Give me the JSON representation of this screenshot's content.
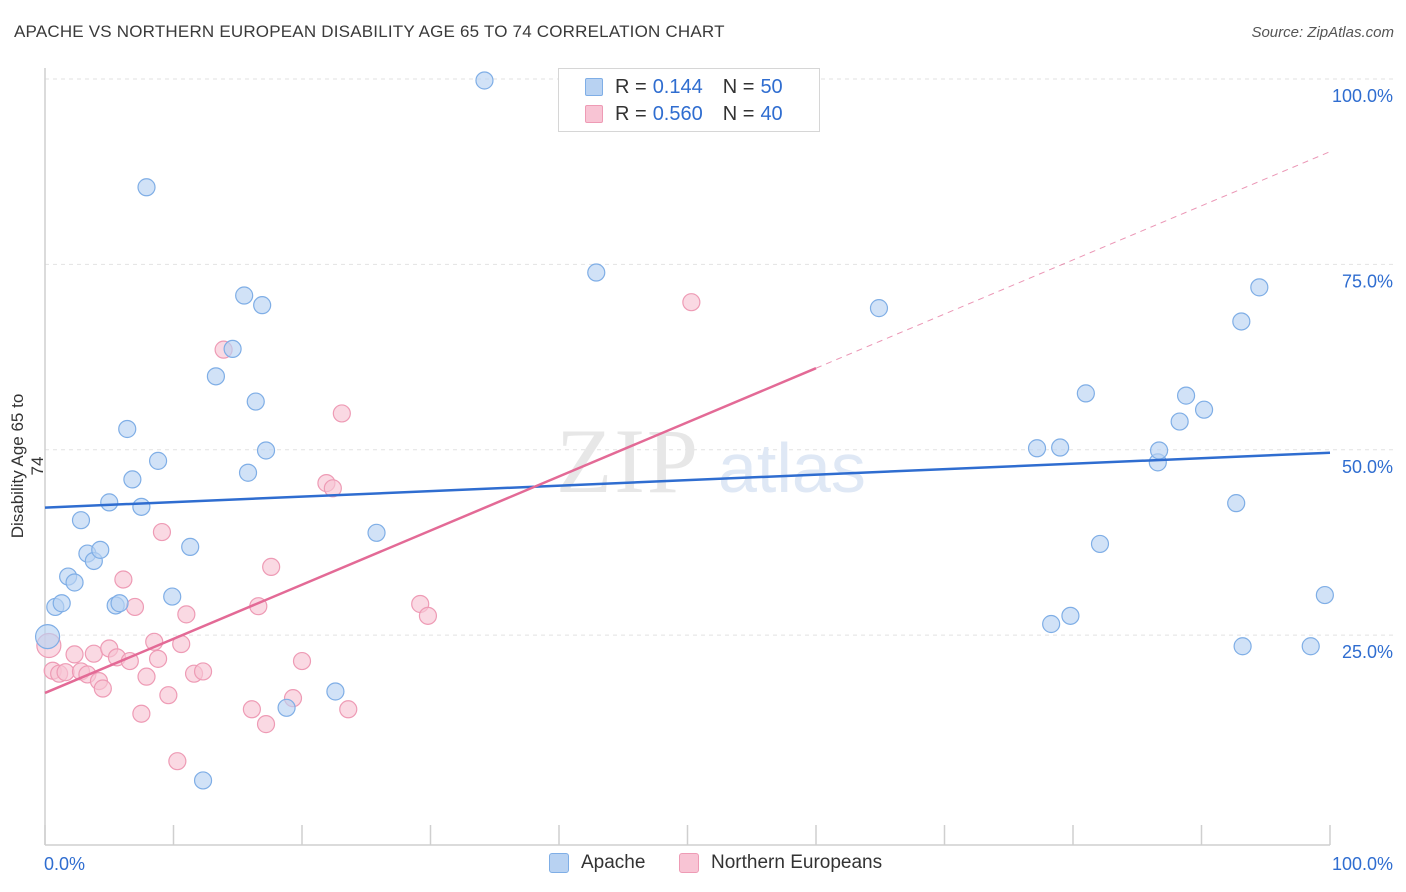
{
  "header": {
    "title": "APACHE VS NORTHERN EUROPEAN DISABILITY AGE 65 TO 74 CORRELATION CHART",
    "source": "Source: ZipAtlas.com"
  },
  "watermark": {
    "zip": "ZIP",
    "atlas": "atlas"
  },
  "legend_top": [
    {
      "r_label": "R =",
      "r_value": "0.144",
      "n_label": "N =",
      "n_value": "50"
    },
    {
      "r_label": "R =",
      "r_value": "0.560",
      "n_label": "N =",
      "n_value": "40"
    }
  ],
  "legend_bottom": [
    {
      "label": "Apache"
    },
    {
      "label": "Northern Europeans"
    }
  ],
  "colors": {
    "apache_fill": "#b8d2f2",
    "apache_stroke": "#7faee6",
    "apache_line": "#2f6dd0",
    "ne_fill": "#f8c4d4",
    "ne_stroke": "#ee9bb5",
    "ne_line": "#e36a96",
    "axis_text": "#2f6dd0",
    "grid": "#e2e2e2"
  },
  "chart_data": {
    "type": "scatter",
    "title": "APACHE VS NORTHERN EUROPEAN DISABILITY AGE 65 TO 74 CORRELATION CHART",
    "xlabel": "",
    "ylabel": "Disability Age 65 to 74",
    "xlim": [
      0,
      100
    ],
    "ylim": [
      0,
      100
    ],
    "x_tick_labels": [
      "0.0%",
      "100.0%"
    ],
    "y_tick_labels": [
      "25.0%",
      "50.0%",
      "75.0%",
      "100.0%"
    ],
    "y_ticks": [
      25,
      50,
      75,
      100
    ],
    "grid": true,
    "legend_position": "top-center",
    "series": [
      {
        "name": "Apache",
        "r": 0.144,
        "n": 50,
        "trend": {
          "x": [
            0,
            100
          ],
          "y": [
            42.2,
            49.6
          ],
          "dashed_from": null
        },
        "points": [
          [
            0.2,
            24.8
          ],
          [
            0.8,
            28.8
          ],
          [
            1.3,
            29.3
          ],
          [
            1.8,
            32.9
          ],
          [
            2.3,
            32.1
          ],
          [
            2.8,
            40.5
          ],
          [
            3.3,
            36.0
          ],
          [
            3.8,
            35.0
          ],
          [
            4.3,
            36.5
          ],
          [
            5.0,
            42.9
          ],
          [
            5.5,
            29.0
          ],
          [
            5.8,
            29.3
          ],
          [
            6.4,
            52.8
          ],
          [
            6.8,
            46.0
          ],
          [
            7.5,
            42.3
          ],
          [
            7.9,
            85.4
          ],
          [
            8.8,
            48.5
          ],
          [
            9.9,
            30.2
          ],
          [
            11.3,
            36.9
          ],
          [
            12.3,
            5.4
          ],
          [
            13.3,
            59.9
          ],
          [
            14.6,
            63.6
          ],
          [
            15.5,
            70.8
          ],
          [
            15.8,
            46.9
          ],
          [
            16.4,
            56.5
          ],
          [
            16.9,
            69.5
          ],
          [
            17.2,
            49.9
          ],
          [
            18.8,
            15.2
          ],
          [
            22.6,
            17.4
          ],
          [
            25.8,
            38.8
          ],
          [
            34.2,
            99.8
          ],
          [
            42.9,
            73.9
          ],
          [
            64.9,
            69.1
          ],
          [
            77.2,
            50.2
          ],
          [
            79.0,
            50.3
          ],
          [
            78.3,
            26.5
          ],
          [
            79.8,
            27.6
          ],
          [
            81.0,
            57.6
          ],
          [
            82.1,
            37.3
          ],
          [
            86.6,
            48.3
          ],
          [
            86.7,
            49.9
          ],
          [
            88.3,
            53.8
          ],
          [
            88.8,
            57.3
          ],
          [
            90.2,
            55.4
          ],
          [
            92.7,
            42.8
          ],
          [
            93.1,
            67.3
          ],
          [
            94.5,
            71.9
          ],
          [
            93.2,
            23.5
          ],
          [
            98.5,
            23.5
          ],
          [
            99.6,
            30.4
          ]
        ]
      },
      {
        "name": "Northern Europeans",
        "r": 0.56,
        "n": 40,
        "trend": {
          "x": [
            0,
            100
          ],
          "y": [
            17.2,
            90.2
          ],
          "dashed_from": 60
        },
        "points": [
          [
            0.3,
            23.6
          ],
          [
            0.6,
            20.2
          ],
          [
            1.1,
            19.8
          ],
          [
            1.6,
            20.0
          ],
          [
            2.3,
            22.4
          ],
          [
            2.8,
            20.1
          ],
          [
            3.3,
            19.7
          ],
          [
            3.8,
            22.5
          ],
          [
            4.2,
            18.8
          ],
          [
            4.5,
            17.8
          ],
          [
            5.0,
            23.2
          ],
          [
            5.6,
            22.0
          ],
          [
            6.1,
            32.5
          ],
          [
            6.6,
            21.5
          ],
          [
            7.0,
            28.8
          ],
          [
            7.5,
            14.4
          ],
          [
            7.9,
            19.4
          ],
          [
            8.5,
            24.1
          ],
          [
            8.8,
            21.8
          ],
          [
            9.1,
            38.9
          ],
          [
            9.6,
            16.9
          ],
          [
            10.3,
            8.0
          ],
          [
            10.6,
            23.8
          ],
          [
            11.0,
            27.8
          ],
          [
            11.6,
            19.8
          ],
          [
            12.3,
            20.1
          ],
          [
            13.9,
            63.5
          ],
          [
            16.1,
            15.0
          ],
          [
            16.6,
            28.9
          ],
          [
            17.2,
            13.0
          ],
          [
            17.6,
            34.2
          ],
          [
            19.3,
            16.5
          ],
          [
            20.0,
            21.5
          ],
          [
            21.9,
            45.5
          ],
          [
            22.4,
            44.8
          ],
          [
            23.1,
            54.9
          ],
          [
            23.6,
            15.0
          ],
          [
            29.2,
            29.2
          ],
          [
            29.8,
            27.6
          ],
          [
            50.3,
            69.9
          ]
        ]
      }
    ]
  }
}
